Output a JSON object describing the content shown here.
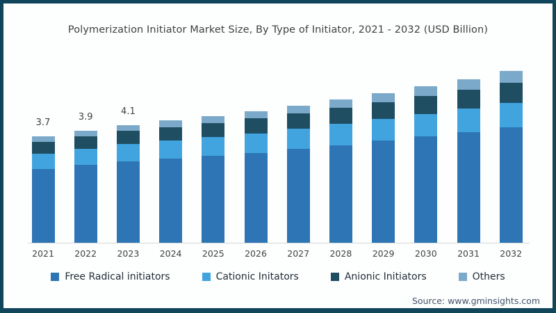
{
  "title": "Polymerization Initiator Market Size, By Type of Initiator, 2021 - 2032 (USD Billion)",
  "source": "Source: www.gminsights.com",
  "frame": {
    "border_color": "#11455c",
    "background": "#fdfefe",
    "axis_line_color": "#d6d6d6"
  },
  "chart_data": {
    "type": "bar",
    "stacked": true,
    "title": "Polymerization Initiator Market Size, By Type of Initiator, 2021 - 2032 (USD Billion)",
    "xlabel": "",
    "ylabel": "USD Billion",
    "ylim": [
      0,
      6.5
    ],
    "grid": false,
    "legend_position": "bottom",
    "categories": [
      "2021",
      "2022",
      "2023",
      "2024",
      "2025",
      "2026",
      "2027",
      "2028",
      "2029",
      "2030",
      "2031",
      "2032"
    ],
    "series": [
      {
        "name": "Free Radical initiators",
        "color": "#2e75b5",
        "values": [
          2.56,
          2.7,
          2.84,
          2.93,
          3.02,
          3.13,
          3.26,
          3.4,
          3.55,
          3.7,
          3.86,
          4.03
        ]
      },
      {
        "name": "Cationic Initators",
        "color": "#41a4df",
        "values": [
          0.55,
          0.57,
          0.6,
          0.63,
          0.66,
          0.68,
          0.7,
          0.73,
          0.76,
          0.79,
          0.81,
          0.84
        ]
      },
      {
        "name": "Anionic Initiators",
        "color": "#1f4e63",
        "values": [
          0.4,
          0.43,
          0.45,
          0.47,
          0.49,
          0.52,
          0.55,
          0.57,
          0.58,
          0.61,
          0.65,
          0.7
        ]
      },
      {
        "name": "Others",
        "color": "#7aa9c9",
        "values": [
          0.19,
          0.2,
          0.21,
          0.22,
          0.24,
          0.25,
          0.27,
          0.29,
          0.32,
          0.34,
          0.37,
          0.4
        ]
      }
    ],
    "totals": [
      3.7,
      3.9,
      4.1,
      4.25,
      4.41,
      4.58,
      4.78,
      4.99,
      5.21,
      5.44,
      5.69,
      5.97
    ],
    "data_labels": [
      "3.7",
      "3.9",
      "4.1",
      "",
      "",
      "",
      "",
      "",
      "",
      "",
      "",
      ""
    ]
  }
}
